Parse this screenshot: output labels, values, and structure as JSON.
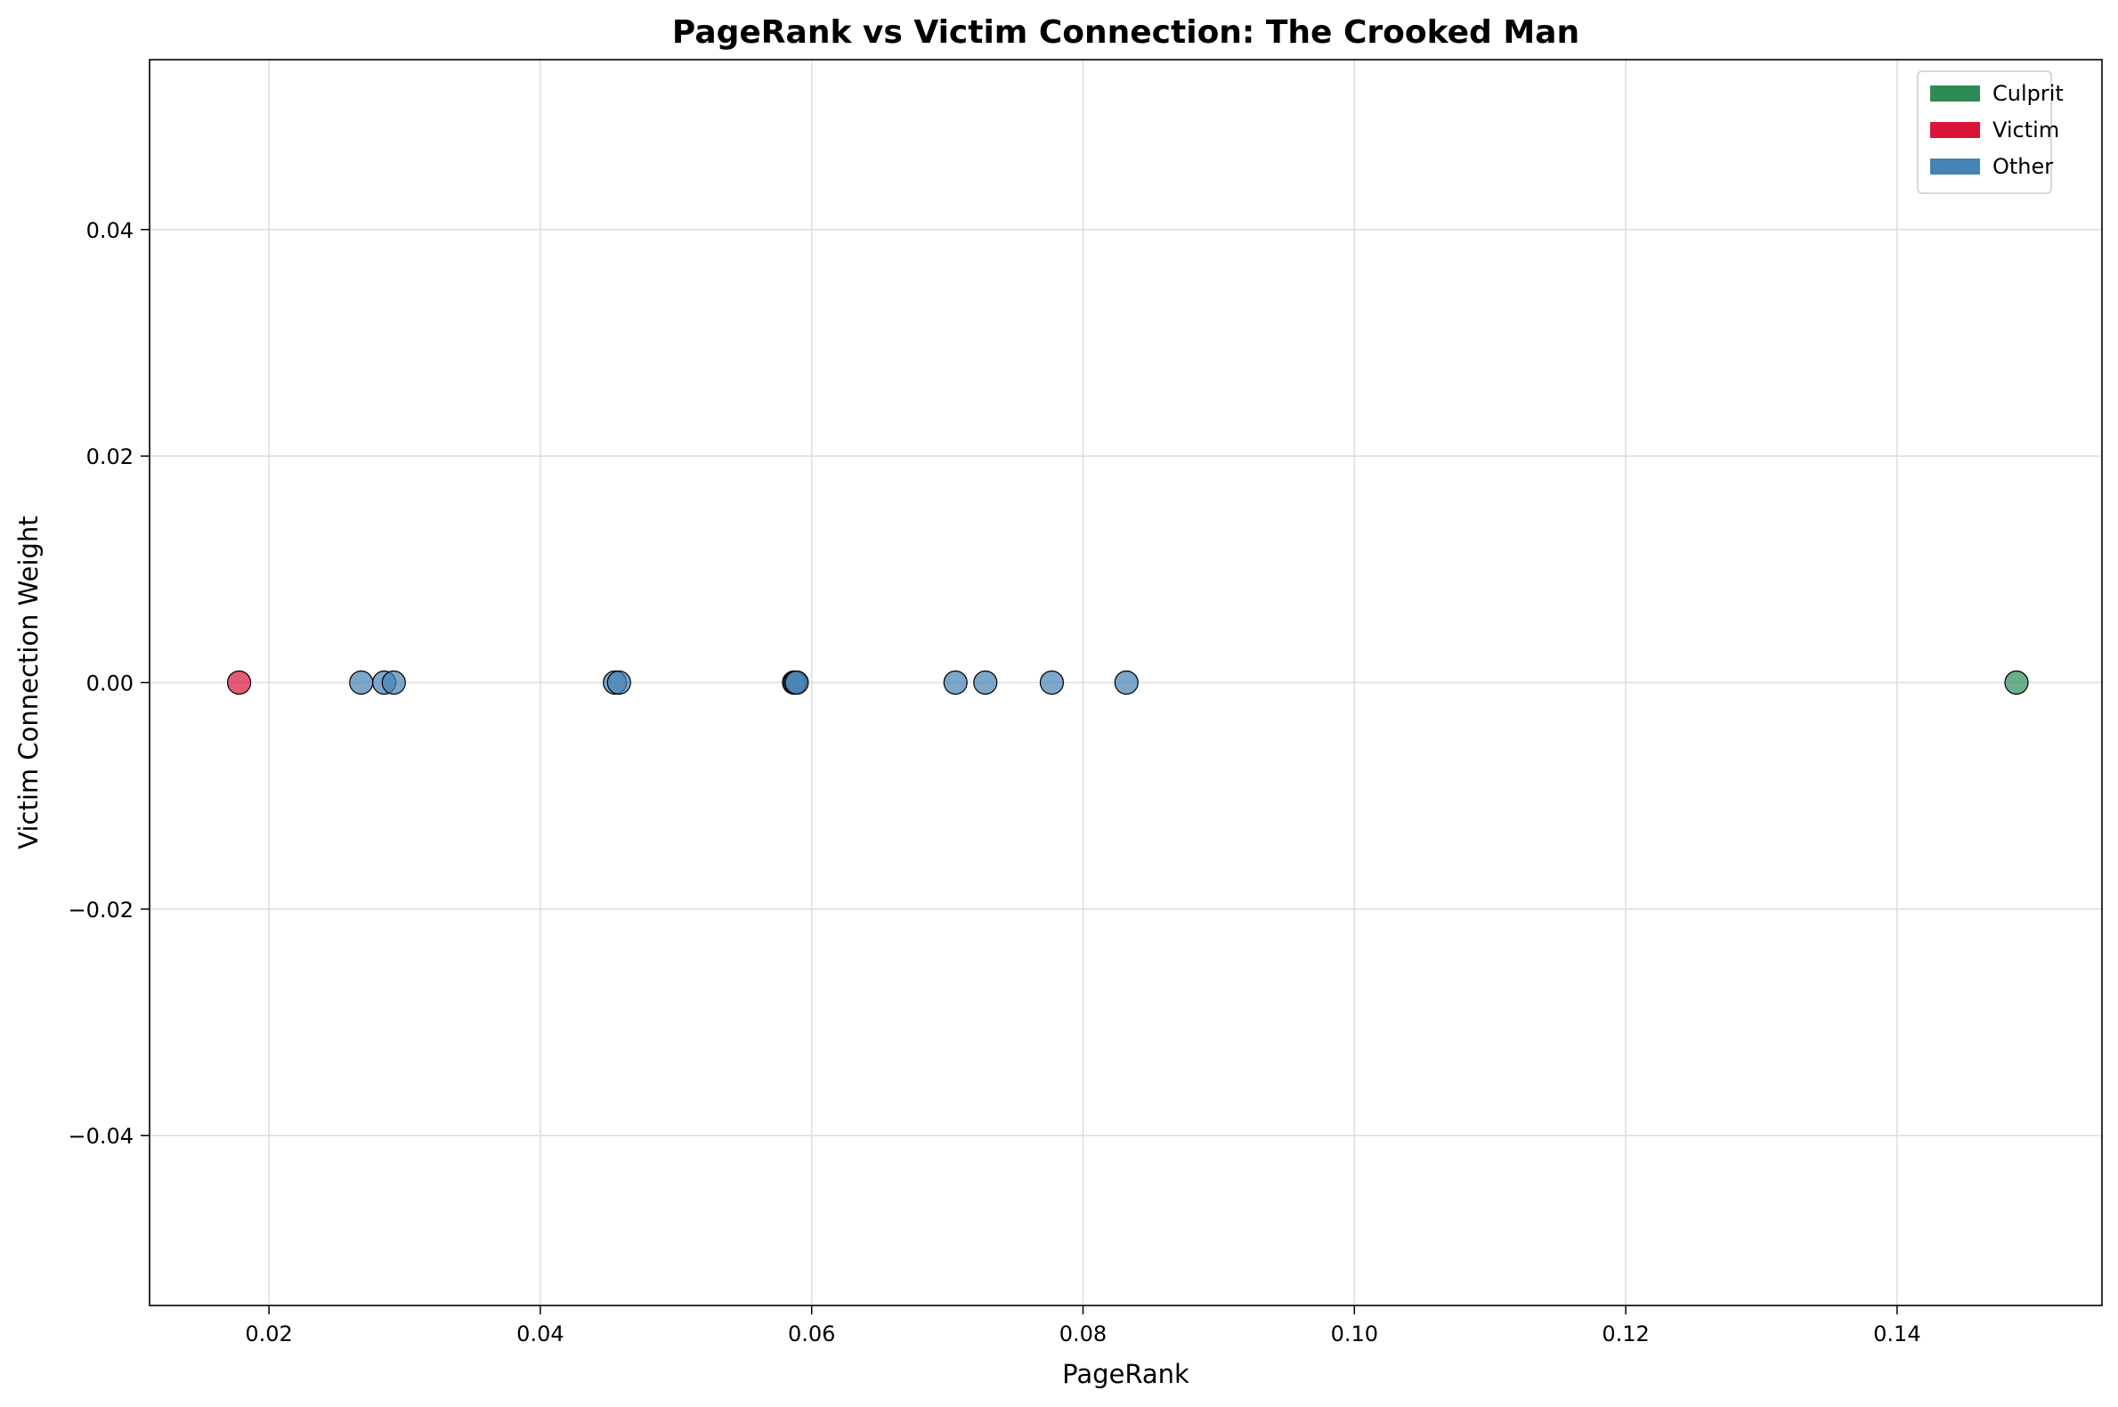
{
  "chart_data": {
    "type": "scatter",
    "title": "PageRank vs Victim Connection: The Crooked Man",
    "xlabel": "PageRank",
    "ylabel": "Victim Connection Weight",
    "xlim": [
      0.0112,
      0.1551
    ],
    "ylim": [
      -0.055,
      0.055
    ],
    "xticks": [
      0.02,
      0.04,
      0.06,
      0.08,
      0.1,
      0.12,
      0.14
    ],
    "xtick_labels": [
      "0.02",
      "0.04",
      "0.06",
      "0.08",
      "0.10",
      "0.12",
      "0.14"
    ],
    "yticks": [
      0.04,
      0.02,
      0.0,
      -0.02,
      -0.04
    ],
    "ytick_labels": [
      "0.04",
      "0.02",
      "0.00",
      "−0.02",
      "−0.04"
    ],
    "grid": true,
    "legend_position": "top-right",
    "legend": [
      {
        "label": "Culprit",
        "color": "#2e8b57"
      },
      {
        "label": "Victim",
        "color": "#dc143c"
      },
      {
        "label": "Other",
        "color": "#4682b4"
      }
    ],
    "series": [
      {
        "name": "Culprit",
        "color": "#2e8b57",
        "x": [
          0.1488
        ],
        "y": [
          0.0
        ]
      },
      {
        "name": "Victim",
        "color": "#dc143c",
        "x": [
          0.0178
        ],
        "y": [
          0.0
        ]
      },
      {
        "name": "Other",
        "color": "#4682b4",
        "x": [
          0.0268,
          0.0285,
          0.0292,
          0.0455,
          0.0458,
          0.0587,
          0.0588,
          0.0589,
          0.0706,
          0.0728,
          0.0777,
          0.0832
        ],
        "y": [
          0.0,
          0.0,
          0.0,
          0.0,
          0.0,
          0.0,
          0.0,
          0.0,
          0.0,
          0.0,
          0.0,
          0.0
        ]
      }
    ]
  }
}
